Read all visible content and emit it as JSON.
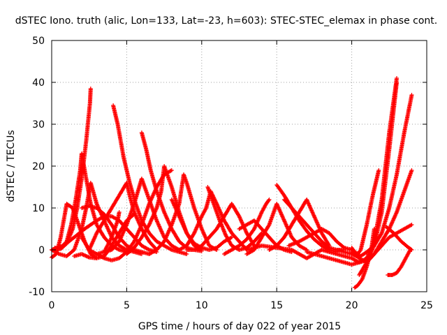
{
  "chart_data": {
    "type": "scatter",
    "title": "dSTEC Iono. truth (alic, Lon=133, Lat=-23, h=603): STEC-STEC_elemax in phase cont.",
    "xlabel": "GPS time / hours of day 022 of year 2015",
    "ylabel": "dSTEC  / TECUs",
    "xlim": [
      0,
      25
    ],
    "ylim": [
      -10,
      50
    ],
    "xticks": [
      0,
      5,
      10,
      15,
      20,
      25
    ],
    "yticks": [
      -10,
      0,
      10,
      20,
      30,
      40,
      50
    ],
    "grid": true,
    "marker": "+",
    "color": "#ff0000",
    "series": [
      {
        "x": [
          0.0,
          0.3,
          0.6,
          0.9,
          1.0,
          1.4,
          1.8,
          2.2,
          2.6,
          3.0
        ],
        "y": [
          -1.8,
          -1.0,
          3,
          9,
          11,
          10,
          6,
          2,
          -1,
          -2
        ]
      },
      {
        "x": [
          0.2,
          0.6,
          1.0,
          1.4,
          1.7,
          2.0,
          2.3,
          2.55,
          2.6
        ],
        "y": [
          0.5,
          0.2,
          1.5,
          5,
          10,
          17,
          26,
          35,
          38.5
        ]
      },
      {
        "x": [
          0.2,
          0.6,
          1.0,
          1.3,
          1.6,
          1.9,
          2.0,
          2.2,
          2.6,
          3.0,
          3.5,
          4.0,
          4.5,
          5.0
        ],
        "y": [
          0.3,
          0.5,
          2,
          6,
          12,
          19,
          23,
          19,
          11,
          6,
          3,
          1,
          0,
          -0.5
        ]
      },
      {
        "x": [
          0.0,
          0.5,
          1.0,
          1.5,
          2.0,
          2.3,
          2.6,
          3.0,
          3.5,
          4.0,
          4.5,
          5.0,
          5.5,
          6.0
        ],
        "y": [
          0,
          -1,
          -1.5,
          0,
          5,
          10,
          16,
          11,
          7,
          3,
          1,
          0,
          -0.5,
          -1
        ]
      },
      {
        "x": [
          2.0,
          2.5,
          3.0,
          3.5,
          4.0,
          4.5,
          5.0,
          5.5,
          6.0,
          6.5
        ],
        "y": [
          10,
          10.5,
          10,
          8.5,
          6,
          3,
          1,
          0,
          -0.5,
          -1
        ]
      },
      {
        "x": [
          0.0,
          0.8,
          1.5,
          2.2,
          3.0,
          3.5,
          4.0,
          4.5,
          5.0,
          5.5,
          6.0,
          6.5,
          7.0
        ],
        "y": [
          0,
          1,
          3,
          5,
          7,
          8,
          8,
          7,
          5,
          3,
          1,
          0,
          -0.5
        ]
      },
      {
        "x": [
          1.5,
          2.0,
          2.5,
          3.0,
          3.5,
          4.0,
          4.5,
          5.0,
          5.5
        ],
        "y": [
          -1.5,
          -1.0,
          -1.8,
          -2,
          -1.5,
          1,
          4,
          7,
          8.5
        ]
      },
      {
        "x": [
          2.0,
          2.5,
          3.0,
          3.5,
          4.0,
          4.4,
          4.5
        ],
        "y": [
          3,
          0,
          -1,
          -0.5,
          3,
          7,
          9
        ]
      },
      {
        "x": [
          3.0,
          3.5,
          4.0,
          4.5,
          5.0,
          5.5,
          6.0,
          6.5,
          7.0,
          7.5,
          8.0
        ],
        "y": [
          -1,
          -2,
          -2.5,
          -2,
          -0.5,
          2,
          6,
          11,
          15,
          18,
          19
        ]
      },
      {
        "x": [
          4.1,
          4.4,
          4.8,
          5.2,
          5.6,
          6.0,
          6.5,
          7.0,
          7.5,
          8.0,
          8.5,
          9.0
        ],
        "y": [
          34.5,
          30,
          22,
          16,
          11,
          7,
          4,
          2,
          1,
          0,
          -0.5,
          -1
        ]
      },
      {
        "x": [
          2.5,
          3.0,
          3.5,
          4.0,
          4.5,
          5.0,
          5.2,
          5.5,
          6.0,
          6.5,
          7.0
        ],
        "y": [
          0,
          4,
          7,
          10,
          13,
          16,
          13,
          9,
          5,
          2,
          0
        ]
      },
      {
        "x": [
          3.5,
          4.0,
          4.5,
          5.0,
          5.5,
          6.0,
          6.5,
          7.0,
          7.5,
          8.0,
          8.5
        ],
        "y": [
          -0.5,
          0,
          2,
          6,
          11,
          17,
          12,
          7,
          3,
          1,
          0
        ]
      },
      {
        "x": [
          6.0,
          6.3,
          6.6,
          7.0,
          7.5,
          8.0,
          8.5,
          9.0,
          9.5,
          10.0
        ],
        "y": [
          28,
          24,
          19,
          14,
          9,
          5,
          2,
          0.5,
          0,
          -0.3
        ]
      },
      {
        "x": [
          5.0,
          5.5,
          6.0,
          6.5,
          7.0,
          7.3,
          7.5,
          8.0,
          8.5,
          9.0,
          9.5,
          10.0
        ],
        "y": [
          -1,
          0.5,
          3,
          6,
          10,
          14,
          20,
          15,
          9,
          4,
          1,
          0
        ]
      },
      {
        "x": [
          6.5,
          7.0,
          7.5,
          8.0,
          8.5,
          8.8,
          9.0,
          9.5,
          10.0,
          10.5,
          11.0
        ],
        "y": [
          -1,
          0,
          2,
          6,
          11,
          18,
          16,
          10,
          5,
          1,
          0
        ]
      },
      {
        "x": [
          8.0,
          8.5,
          9.0,
          9.5,
          10.0,
          10.5,
          11.0,
          11.5,
          12.0
        ],
        "y": [
          12,
          8,
          4,
          1.5,
          0.5,
          0,
          0.5,
          2,
          3
        ]
      },
      {
        "x": [
          8.5,
          9.0,
          9.5,
          10.0,
          10.3,
          10.6,
          11.0,
          11.5,
          12.0,
          12.5,
          13.0
        ],
        "y": [
          0,
          1,
          4,
          8,
          10,
          14,
          11,
          7,
          4,
          2,
          0
        ]
      },
      {
        "x": [
          10.4,
          10.8,
          11.2,
          11.6,
          12.0,
          12.5,
          13.0,
          13.5,
          14.0
        ],
        "y": [
          15,
          11,
          7,
          3.5,
          1,
          0,
          0.5,
          2,
          4
        ]
      },
      {
        "x": [
          9.0,
          9.5,
          10.0,
          10.5,
          11.0,
          11.5,
          12.0,
          12.5,
          13.0,
          13.5
        ],
        "y": [
          0,
          0,
          1,
          3,
          5,
          8,
          11,
          8,
          4,
          1
        ]
      },
      {
        "x": [
          11.5,
          12.0,
          12.5,
          13.0,
          13.5,
          14.0,
          14.3,
          14.5
        ],
        "y": [
          -1,
          0,
          1,
          2.5,
          5,
          9,
          11,
          12
        ]
      },
      {
        "x": [
          12.5,
          13.0,
          13.5,
          14.0,
          14.5,
          15.0,
          15.5,
          16.0
        ],
        "y": [
          5,
          6,
          7,
          5,
          3,
          1,
          0,
          -0.5
        ]
      },
      {
        "x": [
          13.0,
          13.5,
          14.0,
          14.5,
          15.0,
          15.5,
          16.0,
          16.5,
          17.0
        ],
        "y": [
          -1,
          0,
          3,
          6,
          11,
          7,
          3,
          1,
          0
        ]
      },
      {
        "x": [
          15.0,
          15.5,
          16.0,
          16.5,
          17.0,
          17.5,
          18.0,
          18.5,
          19.0
        ],
        "y": [
          15.5,
          13,
          10,
          7,
          4.5,
          2.5,
          1,
          0,
          -0.5
        ]
      },
      {
        "x": [
          14.5,
          15.0,
          15.5,
          16.0,
          16.5,
          17.0,
          17.5,
          18.0,
          18.5
        ],
        "y": [
          0,
          1,
          3,
          6,
          9,
          12,
          8,
          4,
          1
        ]
      },
      {
        "x": [
          15.5,
          16.0,
          16.5,
          17.0,
          17.5,
          18.0,
          18.5,
          19.0,
          19.5
        ],
        "y": [
          12,
          10,
          8,
          6,
          4,
          2,
          0.5,
          0,
          0
        ]
      },
      {
        "x": [
          15.8,
          16.5,
          17.0,
          17.5,
          18.0,
          18.5,
          19.0,
          19.5,
          20.0,
          20.4
        ],
        "y": [
          1,
          2,
          3,
          4,
          5,
          4,
          2,
          0.5,
          0,
          -1
        ]
      },
      {
        "x": [
          13.0,
          14.0,
          15.0,
          16.0,
          16.5,
          17.0,
          17.5,
          18.0
        ],
        "y": [
          0,
          1,
          0.5,
          0,
          -1,
          -2,
          -1,
          0
        ]
      },
      {
        "x": [
          17.0,
          17.5,
          18.0,
          18.5,
          19.0,
          19.5,
          20.0,
          20.5,
          21.0,
          21.5,
          22.0,
          22.5,
          23.0
        ],
        "y": [
          -0.5,
          -1,
          -1.5,
          -2,
          -2.5,
          -3,
          -3.5,
          -3,
          -2,
          2,
          12,
          28,
          41
        ]
      },
      {
        "x": [
          18.0,
          18.5,
          19.0,
          19.5,
          20.0,
          20.5,
          21.0,
          21.5,
          22.0,
          22.5,
          23.0
        ],
        "y": [
          0,
          -0.5,
          -1,
          -1.5,
          -2,
          -3,
          -2.5,
          1,
          9,
          24,
          40
        ]
      },
      {
        "x": [
          19.0,
          19.5,
          20.0,
          20.3,
          20.6,
          21.0,
          21.4,
          21.8
        ],
        "y": [
          0,
          -0.5,
          -1,
          -1.5,
          0,
          6,
          13,
          19
        ]
      },
      {
        "x": [
          20.0,
          20.3,
          20.6,
          21.0,
          21.5,
          22.0,
          22.5,
          23.0,
          23.5,
          24.0
        ],
        "y": [
          0.5,
          -1,
          -1.5,
          -0.5,
          1,
          4,
          10,
          18,
          28,
          37
        ]
      },
      {
        "x": [
          20.0,
          20.5,
          21.0,
          21.5,
          22.0,
          22.5,
          23.0,
          23.5,
          24.0
        ],
        "y": [
          -0.5,
          -2,
          -3,
          -1,
          2,
          5,
          9,
          14,
          19
        ]
      },
      {
        "x": [
          20.2,
          20.4,
          20.7,
          21.0,
          21.3,
          21.5
        ],
        "y": [
          -9,
          -8.5,
          -7,
          -4,
          0,
          5
        ]
      },
      {
        "x": [
          20.5,
          21.0,
          21.5,
          22.0,
          22.5,
          23.0,
          23.5,
          24.0
        ],
        "y": [
          -6,
          -3,
          -1,
          1,
          3,
          4,
          5,
          6
        ]
      },
      {
        "x": [
          22.3,
          22.8,
          23.3,
          23.8,
          24.0
        ],
        "y": [
          5.5,
          4,
          2,
          0.5,
          0
        ]
      },
      {
        "x": [
          22.4,
          22.7,
          23.0,
          23.3,
          23.6,
          23.9
        ],
        "y": [
          -6,
          -6,
          -5.5,
          -4,
          -2,
          0
        ]
      }
    ]
  }
}
